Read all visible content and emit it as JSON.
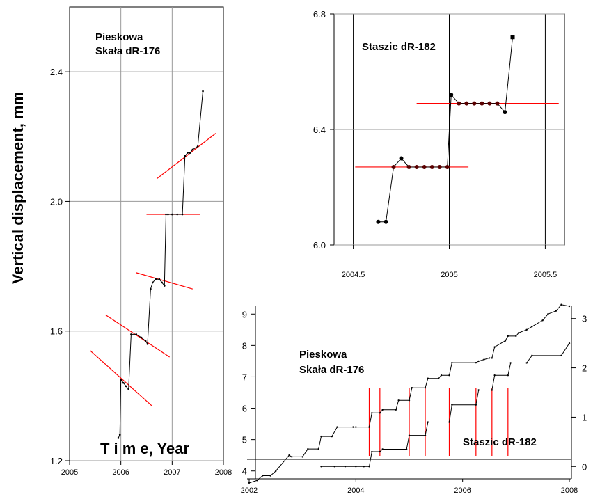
{
  "chart_data": [
    {
      "id": "left",
      "type": "line",
      "title": "",
      "xlabel": "T i m e, Year",
      "ylabel": "Vertical displacement, mm",
      "xlim": [
        2005,
        2008
      ],
      "ylim": [
        1.2,
        2.6
      ],
      "xticks": [
        "2005",
        "2006",
        "2007",
        "2008"
      ],
      "yticks": [
        "1.2",
        "1.6",
        "2.0",
        "2.4"
      ],
      "annotation": "Pieskowa\nSkała dR-176",
      "annotation_lines": [
        "Pieskowa",
        "Skała dR-176"
      ],
      "grid": true,
      "colors": {
        "data": "#000000",
        "fit": "#ff0000",
        "grid": "#999999"
      },
      "series": [
        {
          "x": [
            2005.95,
            2005.98,
            2006.0,
            2006.05,
            2006.1,
            2006.15,
            2006.2,
            2006.3,
            2006.4,
            2006.48,
            2006.52,
            2006.58,
            2006.62,
            2006.68,
            2006.75,
            2006.8,
            2006.85,
            2006.88,
            2006.92,
            2007.0,
            2007.1,
            2007.2,
            2007.25,
            2007.3,
            2007.35,
            2007.4,
            2007.5,
            2007.6
          ],
          "y": [
            1.27,
            1.28,
            1.45,
            1.44,
            1.43,
            1.42,
            1.59,
            1.59,
            1.58,
            1.57,
            1.56,
            1.73,
            1.75,
            1.76,
            1.76,
            1.75,
            1.74,
            1.96,
            1.96,
            1.96,
            1.96,
            1.96,
            2.14,
            2.15,
            2.15,
            2.16,
            2.17,
            2.34
          ]
        }
      ],
      "fit_lines": [
        {
          "x": [
            2005.4,
            2006.6
          ],
          "y": [
            1.54,
            1.37
          ]
        },
        {
          "x": [
            2005.7,
            2006.95
          ],
          "y": [
            1.65,
            1.52
          ]
        },
        {
          "x": [
            2006.3,
            2007.4
          ],
          "y": [
            1.78,
            1.73
          ]
        },
        {
          "x": [
            2006.5,
            2007.55
          ],
          "y": [
            1.96,
            1.96
          ]
        },
        {
          "x": [
            2006.7,
            2007.85
          ],
          "y": [
            2.07,
            2.21
          ]
        }
      ]
    },
    {
      "id": "top-right",
      "type": "line",
      "title": "",
      "xlabel": "",
      "ylabel": "",
      "xlim": [
        2004.4,
        2005.6
      ],
      "ylim": [
        6.0,
        6.8
      ],
      "xticks": [
        "2004.5",
        "2005",
        "2005.5"
      ],
      "yticks": [
        "6.0",
        "6.4",
        "6.8"
      ],
      "annotation": "Staszic dR-182",
      "grid": true,
      "colors": {
        "data": "#000000",
        "fit": "#ff0000",
        "grid": "#999999"
      },
      "series": [
        {
          "x": [
            2004.63,
            2004.67,
            2004.71,
            2004.75,
            2004.79,
            2004.83,
            2004.87,
            2004.91,
            2004.95,
            2004.99,
            2005.01,
            2005.05,
            2005.09,
            2005.13,
            2005.17,
            2005.21,
            2005.25,
            2005.29,
            2005.33
          ],
          "y": [
            6.08,
            6.08,
            6.27,
            6.3,
            6.27,
            6.27,
            6.27,
            6.27,
            6.27,
            6.27,
            6.52,
            6.49,
            6.49,
            6.49,
            6.49,
            6.49,
            6.49,
            6.46,
            6.72
          ]
        }
      ],
      "fit_lines": [
        {
          "x": [
            2004.51,
            2005.1
          ],
          "y": [
            6.27,
            6.27
          ]
        },
        {
          "x": [
            2004.83,
            2005.57
          ],
          "y": [
            6.49,
            6.49
          ]
        }
      ]
    },
    {
      "id": "bottom-right",
      "type": "line",
      "title": "",
      "xlabel": "",
      "ylabel": "",
      "xlim": [
        2002,
        2008
      ],
      "ylim_left": [
        3.75,
        9.25
      ],
      "ylim_right": [
        -0.25,
        3.25
      ],
      "xticks": [
        "2002",
        "2004",
        "2006",
        "2008"
      ],
      "yticks_left": [
        "4",
        "5",
        "6",
        "7",
        "8",
        "9"
      ],
      "yticks_right": [
        "0",
        "1",
        "2",
        "3"
      ],
      "annotation_left": "Pieskowa\nSkała dR-176",
      "annotation_left_lines": [
        "Pieskowa",
        "Skała dR-176"
      ],
      "annotation_right": "Staszic dR-182",
      "colors": {
        "data": "#000000",
        "marker": "#ff0000"
      },
      "marker_years": [
        2004.25,
        2004.45,
        2005.0,
        2005.3,
        2005.75,
        2006.25,
        2006.55,
        2006.85
      ],
      "series": [
        {
          "name": "",
          "axis": "left",
          "x": [
            2002.0,
            2002.15,
            2002.25,
            2002.4,
            2002.5,
            2002.75,
            2002.8,
            2003.0,
            2003.1,
            2003.3,
            2003.35,
            2003.55,
            2003.65,
            2003.95,
            2004.0,
            2004.25,
            2004.3,
            2004.45,
            2004.5,
            2004.75,
            2004.8,
            2005.0,
            2005.05,
            2005.3,
            2005.35,
            2005.55,
            2005.6,
            2005.75,
            2005.8,
            2006.25,
            2006.3,
            2006.4,
            2006.5,
            2006.55,
            2006.6,
            2006.8,
            2006.85,
            2007.0,
            2007.05,
            2007.2,
            2007.3,
            2007.5,
            2007.6,
            2007.75,
            2007.85,
            2008.0
          ],
          "y": [
            3.62,
            3.7,
            3.85,
            3.85,
            4.0,
            4.5,
            4.45,
            4.45,
            4.7,
            4.7,
            5.1,
            5.1,
            5.4,
            5.4,
            5.4,
            5.4,
            5.85,
            5.85,
            5.95,
            5.95,
            6.25,
            6.25,
            6.65,
            6.65,
            6.95,
            6.95,
            7.05,
            7.05,
            7.45,
            7.45,
            7.5,
            7.55,
            7.6,
            7.6,
            7.95,
            8.15,
            8.3,
            8.3,
            8.4,
            8.5,
            8.6,
            8.8,
            9.0,
            9.1,
            9.3,
            9.25
          ]
        },
        {
          "name": "",
          "axis": "right",
          "x": [
            2003.35,
            2003.6,
            2003.8,
            2004.0,
            2004.15,
            2004.25,
            2004.3,
            2004.45,
            2004.5,
            2004.95,
            2005.0,
            2005.3,
            2005.35,
            2005.75,
            2005.8,
            2006.25,
            2006.3,
            2006.55,
            2006.6,
            2006.85,
            2006.9,
            2007.2,
            2007.3,
            2007.85,
            2008.0
          ],
          "y": [
            0.0,
            0.0,
            0.0,
            0.0,
            0.0,
            0.0,
            0.3,
            0.3,
            0.35,
            0.35,
            0.63,
            0.63,
            0.9,
            0.9,
            1.25,
            1.25,
            1.55,
            1.55,
            1.85,
            1.85,
            2.1,
            2.1,
            2.25,
            2.25,
            2.5
          ]
        }
      ]
    }
  ]
}
